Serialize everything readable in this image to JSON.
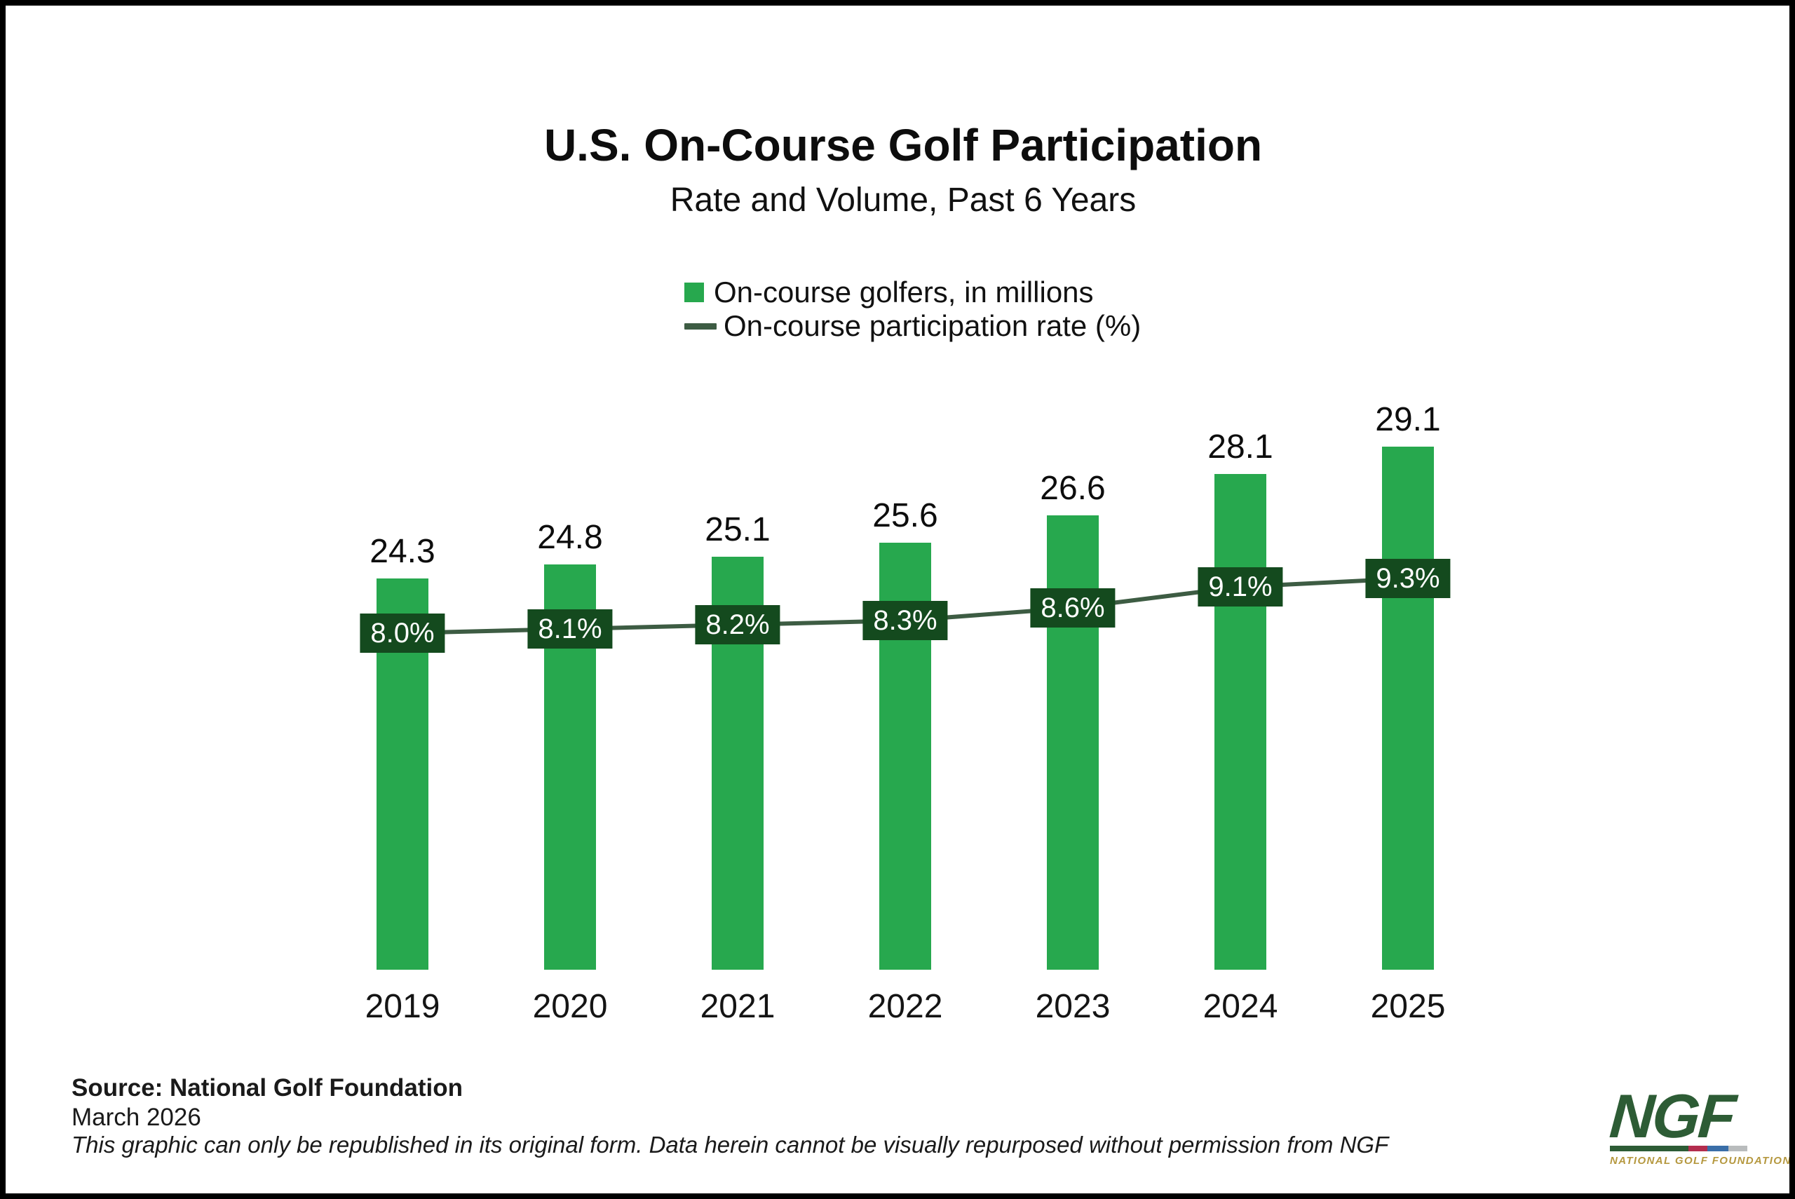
{
  "header": {
    "title": "U.S. On-Course Golf Participation",
    "subtitle": "Rate and Volume, Past 6 Years"
  },
  "legend": {
    "bars_label": "On-course golfers, in millions",
    "line_label": "On-course participation rate (%)"
  },
  "chart_data": {
    "type": "bar",
    "categories": [
      "2019",
      "2020",
      "2021",
      "2022",
      "2023",
      "2024",
      "2025"
    ],
    "series": [
      {
        "name": "On-course golfers, in millions",
        "type": "bar",
        "values": [
          24.3,
          24.8,
          25.1,
          25.6,
          26.6,
          28.1,
          29.1
        ],
        "labels": [
          "24.3",
          "24.8",
          "25.1",
          "25.6",
          "26.6",
          "28.1",
          "29.1"
        ]
      },
      {
        "name": "On-course participation rate (%)",
        "type": "line",
        "values": [
          8.0,
          8.1,
          8.2,
          8.3,
          8.6,
          9.1,
          9.3
        ],
        "labels": [
          "8.0%",
          "8.1%",
          "8.2%",
          "8.3%",
          "8.6%",
          "9.1%",
          "9.3%"
        ]
      }
    ],
    "title": "U.S. On-Course Golf Participation",
    "subtitle": "Rate and Volume, Past 6 Years",
    "legend_position": "top-center",
    "grid": false,
    "axes_visible": false,
    "value_labels": true
  },
  "footer": {
    "source": "Source: National Golf Foundation",
    "date": "March 2026",
    "disclaimer": "This graphic can only be republished in its original form. Data herein cannot be visually repurposed without permission from NGF"
  },
  "logo": {
    "text": "NGF",
    "subtext": "NATIONAL GOLF FOUNDATION"
  },
  "colors": {
    "bar": "#27a84e",
    "line": "#3d5c43",
    "badge_bg": "#144a1e",
    "badge_text": "#ffffff",
    "logo_green": "#2d5c35",
    "logo_gold": "#b5983f",
    "logo_bar_red": "#b32d4e",
    "logo_bar_blue": "#3a6ea8",
    "logo_bar_gray": "#b9bcbd"
  }
}
